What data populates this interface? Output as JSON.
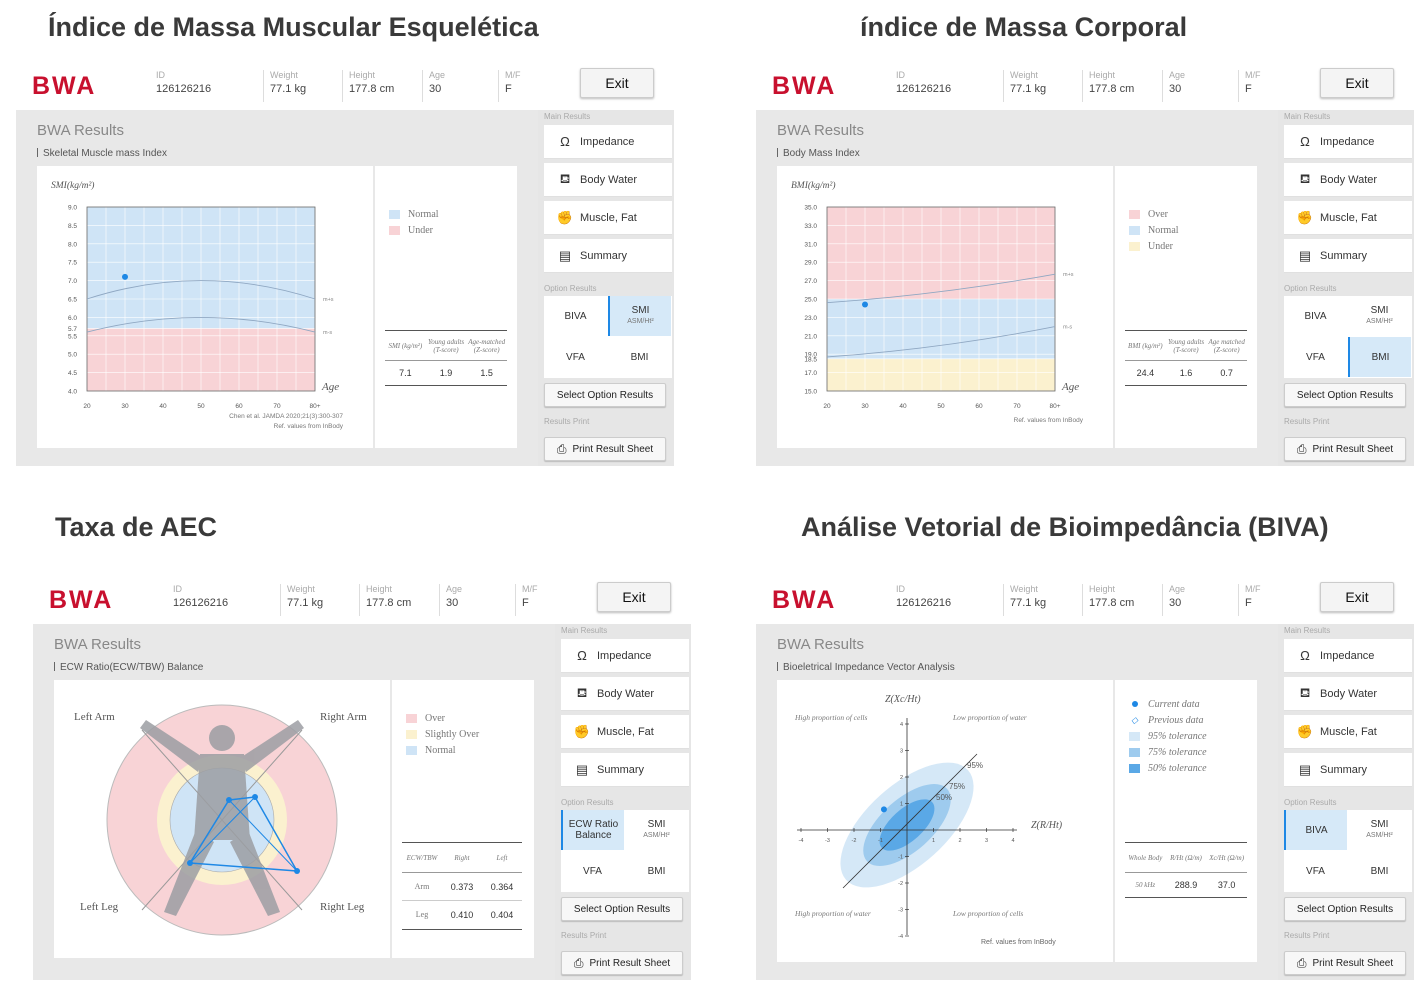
{
  "titles": {
    "q1": "Índice de Massa Muscular Esquelética",
    "q2": "índice de Massa Corporal",
    "q3": "Taxa de AEC",
    "q4": "Análise Vetorial de Bioimpedância (BIVA)"
  },
  "header": {
    "logo": "BWA",
    "id_label": "ID",
    "id_value": "126126216",
    "weight_label": "Weight",
    "weight_value": "77.1 kg",
    "height_label": "Height",
    "height_value": "177.8 cm",
    "age_label": "Age",
    "age_value": "30",
    "sex_label": "M/F",
    "sex_value": "F",
    "exit_label": "Exit"
  },
  "sidebar": {
    "main_results": "Main Results",
    "impedance": "Impedance",
    "body_water": "Body Water",
    "muscle_fat": "Muscle, Fat",
    "summary": "Summary",
    "option_results": "Option Results",
    "biva": "BIVA",
    "smi": "SMI",
    "smi_sub": "ASM/Ht²",
    "vfa": "VFA",
    "bmi": "BMI",
    "ecw": "ECW Ratio Balance",
    "select_option": "Select Option Results",
    "results_print": "Results Print",
    "print_sheet": "Print Result Sheet"
  },
  "colors": {
    "brand": "#c8102e",
    "normal_blue": "#cfe4f6",
    "under_pink": "#f8d3d6",
    "under_yellow": "#fbf1cf",
    "point": "#1e88e5"
  },
  "panels": {
    "smi": {
      "title": "BWA Results",
      "subtitle": "Skeletal Muscle mass Index",
      "legend": [
        "Normal",
        "Under"
      ],
      "table_headers": [
        "SMI (kg/m²)",
        "Young adults (T-score)",
        "Age-matched (Z-score)"
      ],
      "table_values": [
        "7.1",
        "1.9",
        "1.5"
      ],
      "ref": "Chen et al. JAMDA 2020;21(3):300-307",
      "ref2": "Ref. values from InBody"
    },
    "bmi": {
      "title": "BWA Results",
      "subtitle": "Body Mass Index",
      "legend": [
        "Over",
        "Normal",
        "Under"
      ],
      "table_headers": [
        "BMI (kg/m²)",
        "Young adults (T-score)",
        "Age matched (Z-score)"
      ],
      "table_values": [
        "24.4",
        "1.6",
        "0.7"
      ],
      "ref": "Ref. values from InBody"
    },
    "ecw": {
      "title": "BWA Results",
      "subtitle": "ECW Ratio(ECW/TBW) Balance",
      "legend": [
        "Over",
        "Slightly Over",
        "Normal"
      ],
      "limbs": {
        "left_arm": "Left Arm",
        "right_arm": "Right Arm",
        "left_leg": "Left Leg",
        "right_leg": "Right Leg"
      },
      "table_headers": [
        "ECW/TBW",
        "Right",
        "Left"
      ],
      "rows": [
        {
          "name": "Arm",
          "right": "0.373",
          "left": "0.364"
        },
        {
          "name": "Leg",
          "right": "0.410",
          "left": "0.404"
        }
      ]
    },
    "biva": {
      "title": "BWA Results",
      "subtitle": "Bioeletrical Impedance Vector Analysis",
      "legend": [
        "Current data",
        "Previous data",
        "95% tolerance",
        "75% tolerance",
        "50% tolerance"
      ],
      "yaxis": "Z(Xc/Ht)",
      "xaxis": "Z(R/Ht)",
      "q_tl": "High proportion of cells",
      "q_tr": "Low proportion of water",
      "q_bl": "High proportion of water",
      "q_br": "Low proportion of cells",
      "p95": "95%",
      "p75": "75%",
      "p50": "50%",
      "table_headers": [
        "Whole Body",
        "R/Ht (Ω/m)",
        "Xc/Ht (Ω/m)"
      ],
      "table_values": [
        "50 kHz",
        "288.9",
        "37.0"
      ],
      "ref": "Ref. values from InBody"
    }
  },
  "chart_data": [
    {
      "type": "scatter",
      "title": "Skeletal Muscle mass Index",
      "ylabel": "SMI(kg/m²)",
      "xlabel": "Age",
      "x_ticks": [
        "20",
        "30",
        "40",
        "50",
        "60",
        "70",
        "80+"
      ],
      "y_ticks": [
        "4.0",
        "4.5",
        "5.0",
        "5.5",
        "5.7",
        "6.0",
        "6.5",
        "7.0",
        "7.5",
        "8.0",
        "8.5",
        "9.0"
      ],
      "ylim": [
        4.0,
        9.0
      ],
      "series": [
        {
          "name": "m+s",
          "values": [
            [
              20,
              6.5
            ],
            [
              50,
              7.0
            ],
            [
              80,
              6.5
            ]
          ]
        },
        {
          "name": "m-s",
          "values": [
            [
              20,
              5.6
            ],
            [
              50,
              6.0
            ],
            [
              80,
              5.6
            ]
          ]
        }
      ],
      "current": {
        "x": 30,
        "y": 7.1
      }
    },
    {
      "type": "scatter",
      "title": "Body Mass Index",
      "ylabel": "BMI(kg/m²)",
      "xlabel": "Age",
      "x_ticks": [
        "20",
        "30",
        "40",
        "50",
        "60",
        "70",
        "80+"
      ],
      "y_ticks": [
        "15.0",
        "17.0",
        "18.5",
        "19.0",
        "21.0",
        "23.0",
        "25.0",
        "27.0",
        "29.0",
        "31.0",
        "33.0",
        "35.0"
      ],
      "ylim": [
        15,
        35
      ],
      "series": [
        {
          "name": "m+s",
          "values": [
            [
              20,
              24.6
            ],
            [
              80,
              27.7
            ]
          ]
        },
        {
          "name": "m-s",
          "values": [
            [
              20,
              18.7
            ],
            [
              80,
              22.0
            ]
          ]
        }
      ],
      "current": {
        "x": 30,
        "y": 24.4
      }
    },
    {
      "type": "scatter",
      "title": "Bioeletrical Impedance Vector Analysis",
      "x_ticks": [
        "-4",
        "-3",
        "-2",
        "-1",
        "0",
        "1",
        "2",
        "3",
        "4"
      ],
      "y_ticks": [
        "-4",
        "-3",
        "-2",
        "-1",
        "0",
        "1",
        "2",
        "3",
        "4"
      ],
      "current": {
        "x": -0.6,
        "y": 0.6
      }
    }
  ]
}
